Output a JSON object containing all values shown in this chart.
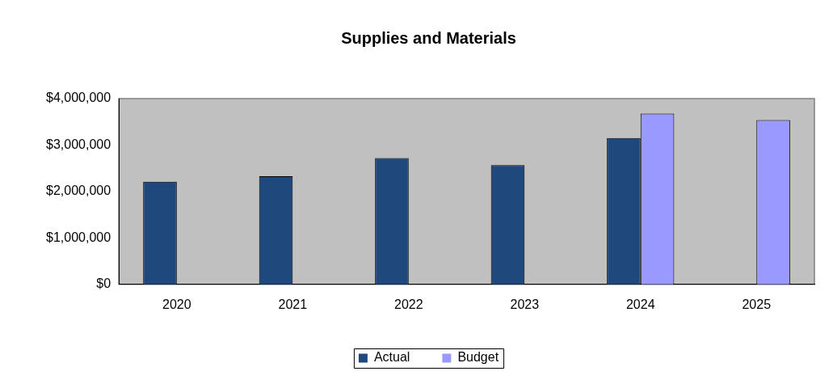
{
  "chart_data": {
    "type": "bar",
    "title": "Supplies and Materials",
    "categories": [
      "2020",
      "2021",
      "2022",
      "2023",
      "2024",
      "2025"
    ],
    "series": [
      {
        "name": "Actual",
        "color": "#1f497d",
        "values": [
          2210000,
          2330000,
          2720000,
          2570000,
          3150000,
          null
        ]
      },
      {
        "name": "Budget",
        "color": "#9999ff",
        "values": [
          null,
          null,
          null,
          null,
          3680000,
          3540000
        ]
      }
    ],
    "ylim": [
      0,
      4000000
    ],
    "yticks": [
      {
        "value": 0,
        "label": "$0"
      },
      {
        "value": 1000000,
        "label": "$1,000,000"
      },
      {
        "value": 2000000,
        "label": "$2,000,000"
      },
      {
        "value": 3000000,
        "label": "$3,000,000"
      },
      {
        "value": 4000000,
        "label": "$4,000,000"
      }
    ],
    "grid": false,
    "legend": "bottom"
  }
}
